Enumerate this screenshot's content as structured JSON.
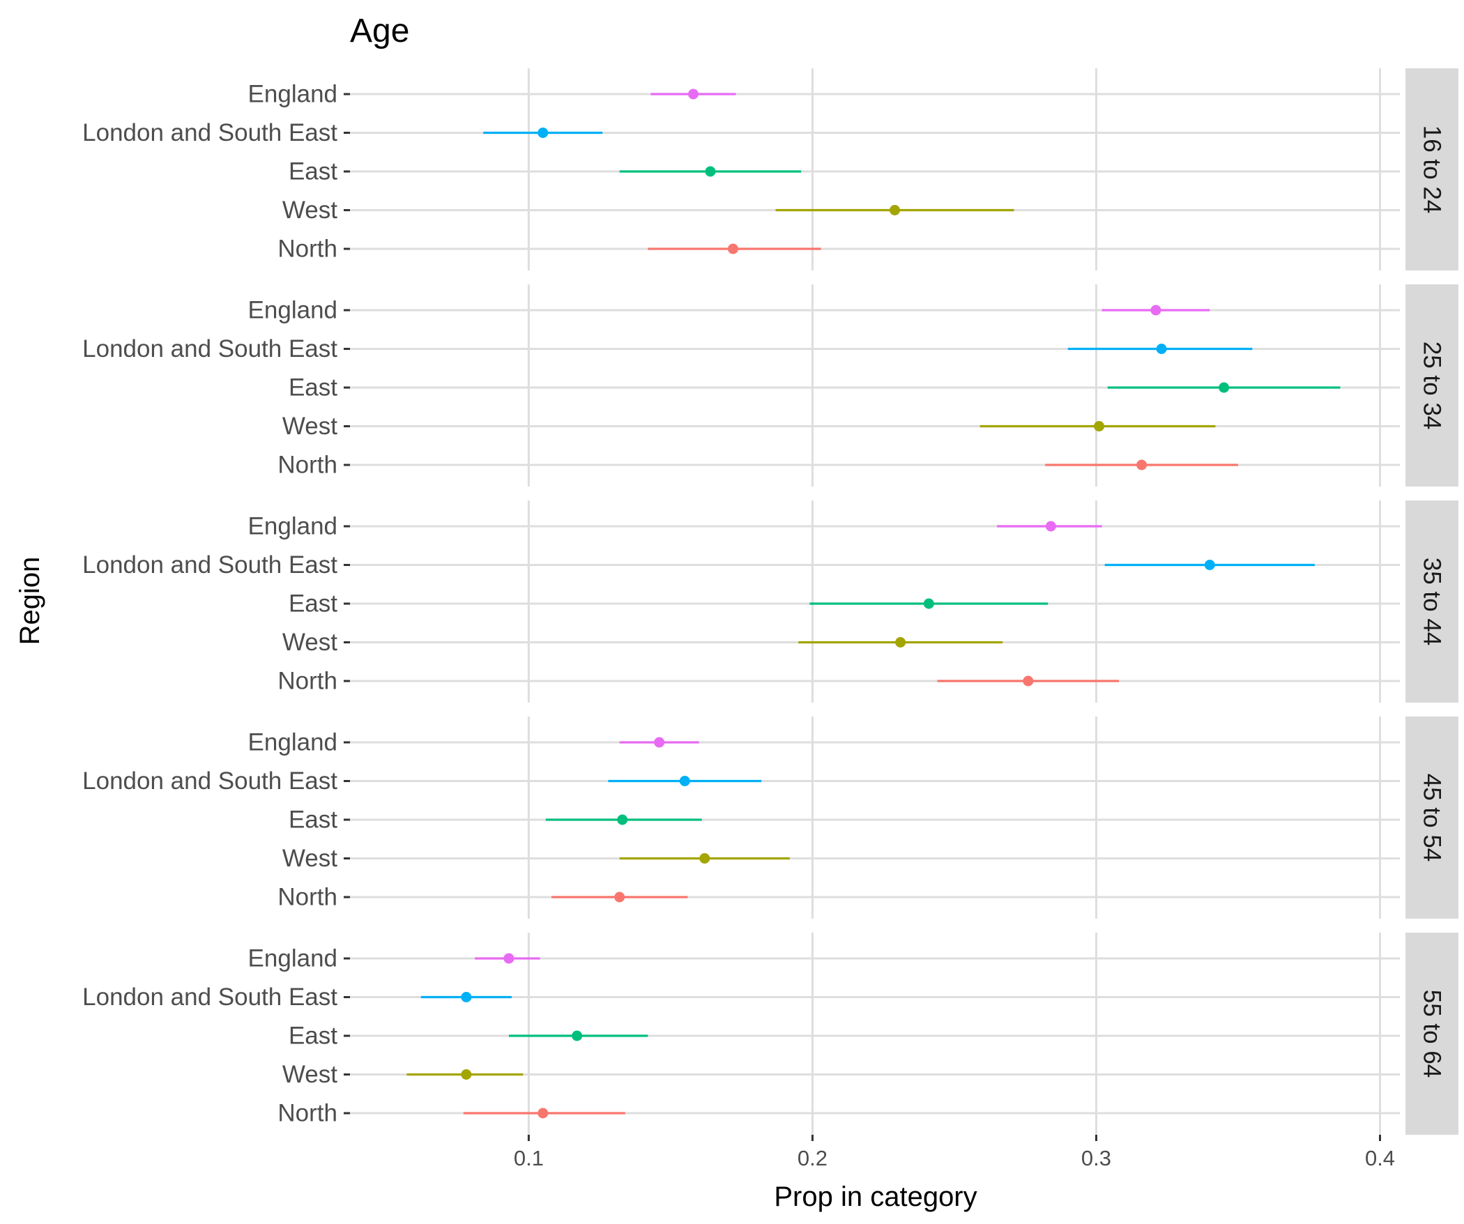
{
  "chart_data": {
    "type": "scatter",
    "subtype": "point-range (dot with interval), faceted by age group",
    "title": "Age",
    "xlabel": "Prop in category",
    "ylabel": "Region",
    "xlim": [
      0.037,
      0.407
    ],
    "x_ticks": [
      0.1,
      0.2,
      0.3,
      0.4
    ],
    "x_tick_labels": [
      "0.1",
      "0.2",
      "0.3",
      "0.4"
    ],
    "grid": true,
    "legend": "none",
    "categories": [
      "England",
      "London and South East",
      "East",
      "West",
      "North"
    ],
    "category_colors": {
      "England": "#E76BF3",
      "London and South East": "#00B0F6",
      "East": "#00BF7D",
      "West": "#A3A500",
      "North": "#F8766D"
    },
    "facets": [
      {
        "label": "16 to 24",
        "points": [
          {
            "region": "England",
            "est": 0.158,
            "low": 0.143,
            "high": 0.173
          },
          {
            "region": "London and South East",
            "est": 0.105,
            "low": 0.084,
            "high": 0.126
          },
          {
            "region": "East",
            "est": 0.164,
            "low": 0.132,
            "high": 0.196
          },
          {
            "region": "West",
            "est": 0.229,
            "low": 0.187,
            "high": 0.271
          },
          {
            "region": "North",
            "est": 0.172,
            "low": 0.142,
            "high": 0.203
          }
        ]
      },
      {
        "label": "25 to 34",
        "points": [
          {
            "region": "England",
            "est": 0.321,
            "low": 0.302,
            "high": 0.34
          },
          {
            "region": "London and South East",
            "est": 0.323,
            "low": 0.29,
            "high": 0.355
          },
          {
            "region": "East",
            "est": 0.345,
            "low": 0.304,
            "high": 0.386
          },
          {
            "region": "West",
            "est": 0.301,
            "low": 0.259,
            "high": 0.342
          },
          {
            "region": "North",
            "est": 0.316,
            "low": 0.282,
            "high": 0.35
          }
        ]
      },
      {
        "label": "35 to 44",
        "points": [
          {
            "region": "England",
            "est": 0.284,
            "low": 0.265,
            "high": 0.302
          },
          {
            "region": "London and South East",
            "est": 0.34,
            "low": 0.303,
            "high": 0.377
          },
          {
            "region": "East",
            "est": 0.241,
            "low": 0.199,
            "high": 0.283
          },
          {
            "region": "West",
            "est": 0.231,
            "low": 0.195,
            "high": 0.267
          },
          {
            "region": "North",
            "est": 0.276,
            "low": 0.244,
            "high": 0.308
          }
        ]
      },
      {
        "label": "45 to 54",
        "points": [
          {
            "region": "England",
            "est": 0.146,
            "low": 0.132,
            "high": 0.16
          },
          {
            "region": "London and South East",
            "est": 0.155,
            "low": 0.128,
            "high": 0.182
          },
          {
            "region": "East",
            "est": 0.133,
            "low": 0.106,
            "high": 0.161
          },
          {
            "region": "West",
            "est": 0.162,
            "low": 0.132,
            "high": 0.192
          },
          {
            "region": "North",
            "est": 0.132,
            "low": 0.108,
            "high": 0.156
          }
        ]
      },
      {
        "label": "55 to 64",
        "points": [
          {
            "region": "England",
            "est": 0.093,
            "low": 0.081,
            "high": 0.104
          },
          {
            "region": "London and South East",
            "est": 0.078,
            "low": 0.062,
            "high": 0.094
          },
          {
            "region": "East",
            "est": 0.117,
            "low": 0.093,
            "high": 0.142
          },
          {
            "region": "West",
            "est": 0.078,
            "low": 0.057,
            "high": 0.098
          },
          {
            "region": "North",
            "est": 0.105,
            "low": 0.077,
            "high": 0.134
          }
        ]
      }
    ]
  }
}
